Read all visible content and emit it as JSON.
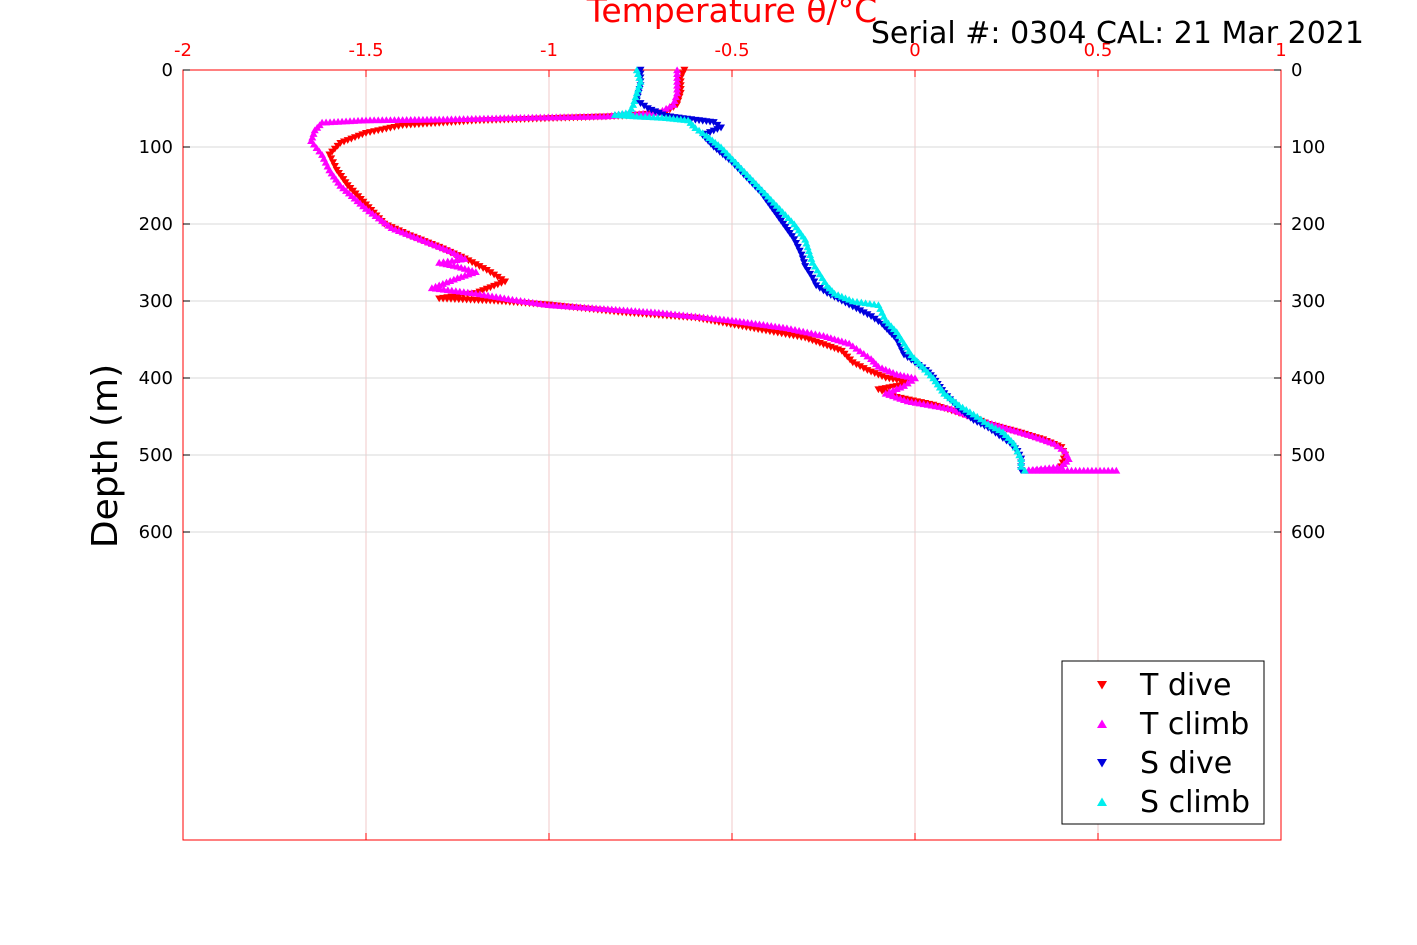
{
  "header": {
    "text": "Serial #: 0304  CAL: 21 Mar 2021"
  },
  "chart_data": {
    "type": "scatter",
    "xlabel": "Temperature θ/°C",
    "ylabel": "Depth (m)",
    "xlim": [
      -2,
      1
    ],
    "ylim": [
      0,
      1000
    ],
    "y_reversed": true,
    "x_axis_position": "top",
    "x_ticks": [
      "-2",
      "-1.5",
      "-1",
      "-0.5",
      "0",
      "0.5",
      "1"
    ],
    "y_ticks": [
      "0",
      "100",
      "200",
      "300",
      "400",
      "500",
      "600"
    ],
    "grid": true,
    "legend_position": "bottom-right",
    "colors": {
      "axis": "#ff0000",
      "grid": "#f0c8c8",
      "hgrid": "#d9d9d9"
    },
    "series": [
      {
        "name": "T dive",
        "marker": "triangle-down",
        "color": "#ff0000",
        "points": [
          [
            -0.63,
            0
          ],
          [
            -0.64,
            10
          ],
          [
            -0.64,
            20
          ],
          [
            -0.64,
            30
          ],
          [
            -0.65,
            45
          ],
          [
            -0.68,
            55
          ],
          [
            -0.8,
            60
          ],
          [
            -1.0,
            63
          ],
          [
            -1.2,
            66
          ],
          [
            -1.4,
            72
          ],
          [
            -1.5,
            82
          ],
          [
            -1.57,
            95
          ],
          [
            -1.6,
            110
          ],
          [
            -1.58,
            130
          ],
          [
            -1.55,
            150
          ],
          [
            -1.5,
            175
          ],
          [
            -1.45,
            200
          ],
          [
            -1.38,
            215
          ],
          [
            -1.3,
            230
          ],
          [
            -1.23,
            245
          ],
          [
            -1.17,
            260
          ],
          [
            -1.12,
            275
          ],
          [
            -1.2,
            290
          ],
          [
            -1.3,
            297
          ],
          [
            -1.15,
            300
          ],
          [
            -1.0,
            305
          ],
          [
            -0.8,
            315
          ],
          [
            -0.6,
            322
          ],
          [
            -0.45,
            335
          ],
          [
            -0.3,
            348
          ],
          [
            -0.2,
            365
          ],
          [
            -0.17,
            380
          ],
          [
            -0.13,
            390
          ],
          [
            -0.08,
            400
          ],
          [
            -0.02,
            405
          ],
          [
            -0.04,
            410
          ],
          [
            -0.1,
            415
          ],
          [
            -0.05,
            425
          ],
          [
            0.05,
            435
          ],
          [
            0.15,
            450
          ],
          [
            0.2,
            460
          ],
          [
            0.28,
            470
          ],
          [
            0.35,
            480
          ],
          [
            0.4,
            490
          ],
          [
            0.41,
            500
          ],
          [
            0.4,
            515
          ]
        ]
      },
      {
        "name": "T climb",
        "marker": "triangle-up",
        "color": "#ff00ff",
        "points": [
          [
            -0.65,
            0
          ],
          [
            -0.65,
            15
          ],
          [
            -0.65,
            30
          ],
          [
            -0.66,
            45
          ],
          [
            -0.7,
            55
          ],
          [
            -0.85,
            60
          ],
          [
            -1.1,
            62
          ],
          [
            -1.3,
            64
          ],
          [
            -1.5,
            65
          ],
          [
            -1.62,
            68
          ],
          [
            -1.64,
            78
          ],
          [
            -1.65,
            92
          ],
          [
            -1.62,
            110
          ],
          [
            -1.6,
            130
          ],
          [
            -1.57,
            150
          ],
          [
            -1.5,
            180
          ],
          [
            -1.43,
            205
          ],
          [
            -1.35,
            220
          ],
          [
            -1.27,
            235
          ],
          [
            -1.23,
            245
          ],
          [
            -1.3,
            250
          ],
          [
            -1.25,
            255
          ],
          [
            -1.2,
            262
          ],
          [
            -1.25,
            270
          ],
          [
            -1.32,
            283
          ],
          [
            -1.2,
            290
          ],
          [
            -1.1,
            298
          ],
          [
            -1.0,
            305
          ],
          [
            -0.85,
            310
          ],
          [
            -0.7,
            315
          ],
          [
            -0.5,
            325
          ],
          [
            -0.35,
            335
          ],
          [
            -0.25,
            345
          ],
          [
            -0.18,
            355
          ],
          [
            -0.15,
            365
          ],
          [
            -0.12,
            375
          ],
          [
            -0.1,
            385
          ],
          [
            -0.05,
            395
          ],
          [
            0.0,
            400
          ],
          [
            -0.03,
            410
          ],
          [
            -0.08,
            420
          ],
          [
            -0.02,
            430
          ],
          [
            0.1,
            440
          ],
          [
            0.18,
            455
          ],
          [
            0.25,
            465
          ],
          [
            0.32,
            475
          ],
          [
            0.38,
            485
          ],
          [
            0.41,
            495
          ],
          [
            0.42,
            505
          ],
          [
            0.4,
            515
          ],
          [
            0.3,
            520
          ],
          [
            0.35,
            520
          ],
          [
            0.45,
            520
          ],
          [
            0.55,
            520
          ]
        ]
      },
      {
        "name": "S dive",
        "marker": "triangle-down",
        "color": "#0000dd",
        "points": [
          [
            -0.75,
            0
          ],
          [
            -0.75,
            20
          ],
          [
            -0.76,
            40
          ],
          [
            -0.73,
            50
          ],
          [
            -0.68,
            60
          ],
          [
            -0.6,
            65
          ],
          [
            -0.55,
            68
          ],
          [
            -0.53,
            75
          ],
          [
            -0.58,
            85
          ],
          [
            -0.55,
            100
          ],
          [
            -0.5,
            120
          ],
          [
            -0.46,
            140
          ],
          [
            -0.42,
            160
          ],
          [
            -0.39,
            180
          ],
          [
            -0.36,
            200
          ],
          [
            -0.33,
            220
          ],
          [
            -0.31,
            240
          ],
          [
            -0.3,
            255
          ],
          [
            -0.28,
            270
          ],
          [
            -0.27,
            280
          ],
          [
            -0.24,
            290
          ],
          [
            -0.2,
            300
          ],
          [
            -0.16,
            310
          ],
          [
            -0.12,
            320
          ],
          [
            -0.09,
            330
          ],
          [
            -0.07,
            340
          ],
          [
            -0.05,
            350
          ],
          [
            -0.04,
            360
          ],
          [
            -0.03,
            370
          ],
          [
            0.0,
            380
          ],
          [
            0.03,
            390
          ],
          [
            0.05,
            400
          ],
          [
            0.08,
            420
          ],
          [
            0.12,
            440
          ],
          [
            0.16,
            455
          ],
          [
            0.2,
            465
          ],
          [
            0.23,
            475
          ],
          [
            0.26,
            485
          ],
          [
            0.28,
            495
          ],
          [
            0.29,
            505
          ],
          [
            0.29,
            515
          ],
          [
            0.29,
            520
          ]
        ]
      },
      {
        "name": "S climb",
        "marker": "triangle-up",
        "color": "#00eeee",
        "points": [
          [
            -0.76,
            0
          ],
          [
            -0.75,
            15
          ],
          [
            -0.76,
            30
          ],
          [
            -0.77,
            45
          ],
          [
            -0.78,
            55
          ],
          [
            -0.82,
            58
          ],
          [
            -0.76,
            60
          ],
          [
            -0.68,
            62
          ],
          [
            -0.62,
            65
          ],
          [
            -0.6,
            75
          ],
          [
            -0.57,
            85
          ],
          [
            -0.53,
            100
          ],
          [
            -0.49,
            120
          ],
          [
            -0.45,
            140
          ],
          [
            -0.41,
            160
          ],
          [
            -0.37,
            180
          ],
          [
            -0.33,
            200
          ],
          [
            -0.3,
            220
          ],
          [
            -0.29,
            235
          ],
          [
            -0.28,
            250
          ],
          [
            -0.26,
            265
          ],
          [
            -0.24,
            280
          ],
          [
            -0.22,
            290
          ],
          [
            -0.17,
            300
          ],
          [
            -0.1,
            305
          ],
          [
            -0.09,
            315
          ],
          [
            -0.08,
            325
          ],
          [
            -0.05,
            340
          ],
          [
            -0.03,
            355
          ],
          [
            -0.01,
            370
          ],
          [
            0.02,
            385
          ],
          [
            0.05,
            400
          ],
          [
            0.08,
            420
          ],
          [
            0.12,
            435
          ],
          [
            0.17,
            450
          ],
          [
            0.2,
            460
          ],
          [
            0.24,
            470
          ],
          [
            0.27,
            485
          ],
          [
            0.28,
            495
          ],
          [
            0.29,
            505
          ],
          [
            0.29,
            515
          ],
          [
            0.3,
            520
          ]
        ]
      }
    ]
  }
}
